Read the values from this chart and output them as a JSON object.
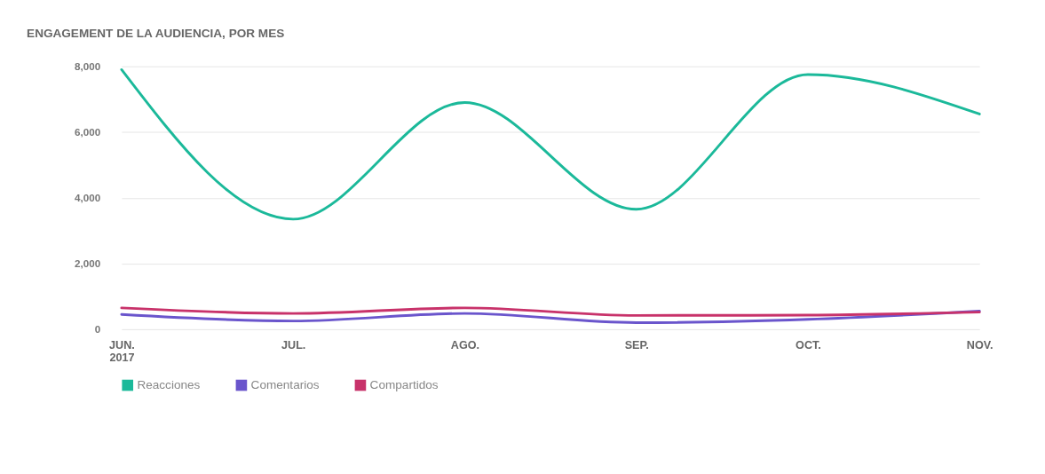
{
  "chart_data": {
    "type": "line",
    "title": "ENGAGEMENT DE LA AUDIENCIA, POR MES",
    "categories": [
      "JUN.\n2017",
      "JUL.",
      "AGO.",
      "SEP.",
      "OCT.",
      "NOV."
    ],
    "series": [
      {
        "name": "Reacciones",
        "color": "#1bb99a",
        "values": [
          7900,
          3350,
          6900,
          3650,
          7750,
          6550
        ]
      },
      {
        "name": "Comentarios",
        "color": "#6a55cc",
        "values": [
          450,
          250,
          480,
          200,
          300,
          550
        ]
      },
      {
        "name": "Compartidos",
        "color": "#c8326a",
        "values": [
          650,
          480,
          650,
          420,
          430,
          520
        ]
      }
    ],
    "ylim": [
      0,
      8000
    ],
    "yticks": [
      {
        "value": 0,
        "label": "0"
      },
      {
        "value": 2000,
        "label": "2,000"
      },
      {
        "value": 4000,
        "label": "4,000"
      },
      {
        "value": 6000,
        "label": "6,000"
      },
      {
        "value": 8000,
        "label": "8,000"
      }
    ],
    "grid": "y",
    "legend": "bottom",
    "marker": "none",
    "line_style": "solid"
  }
}
